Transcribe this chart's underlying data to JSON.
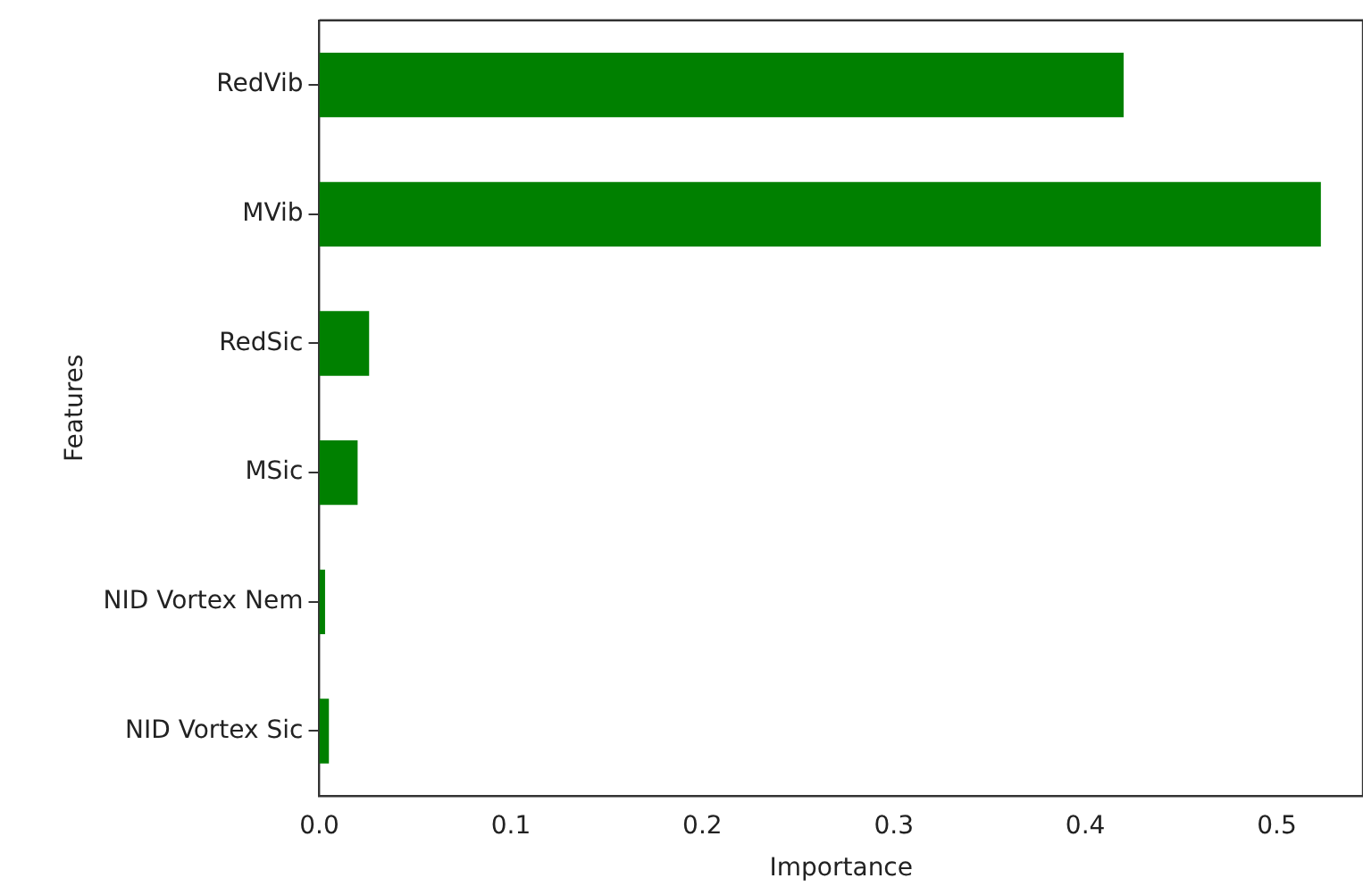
{
  "chart_data": {
    "type": "bar",
    "orientation": "horizontal",
    "xlabel": "Importance",
    "ylabel": "Features",
    "categories": [
      "RedVib",
      "MVib",
      "RedSic",
      "MSic",
      "NID Vortex Nem",
      "NID Vortex Sic"
    ],
    "values": [
      0.42,
      0.523,
      0.026,
      0.02,
      0.003,
      0.005
    ],
    "color": "#008000",
    "xlim": [
      0,
      0.545
    ],
    "xticks": [
      {
        "value": 0,
        "label": "0.0"
      },
      0.1,
      0.2,
      0.3,
      0.4,
      0.5
    ],
    "grid": false,
    "legend": false
  }
}
